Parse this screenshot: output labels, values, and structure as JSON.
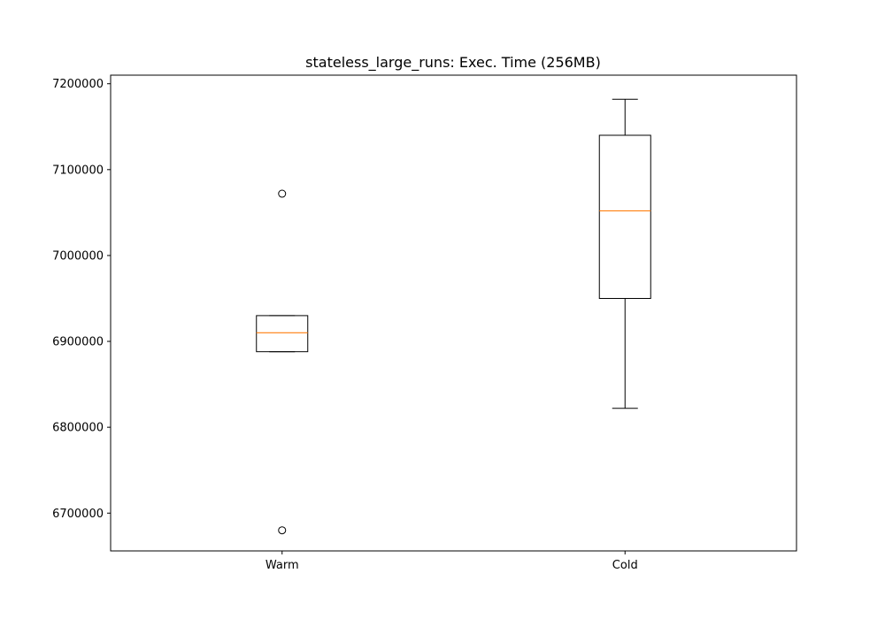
{
  "chart_data": {
    "type": "box",
    "title": "stateless_large_runs: Exec. Time (256MB)",
    "xlabel": "",
    "ylabel": "",
    "categories": [
      "Warm",
      "Cold"
    ],
    "ylim": [
      6656000,
      7210000
    ],
    "yticks": [
      6700000,
      6800000,
      6900000,
      7000000,
      7100000,
      7200000
    ],
    "boxes": [
      {
        "category": "Warm",
        "whislo": 6888000,
        "q1": 6888000,
        "med": 6910000,
        "q3": 6930000,
        "whishi": 6930000,
        "fliers": [
          7072000,
          6680000
        ]
      },
      {
        "category": "Cold",
        "whislo": 6822000,
        "q1": 6950000,
        "med": 7052000,
        "q3": 7140000,
        "whishi": 7182000,
        "fliers": []
      }
    ],
    "colors": {
      "box": "#000000",
      "median": "#ff7f0e"
    },
    "grid": false
  }
}
